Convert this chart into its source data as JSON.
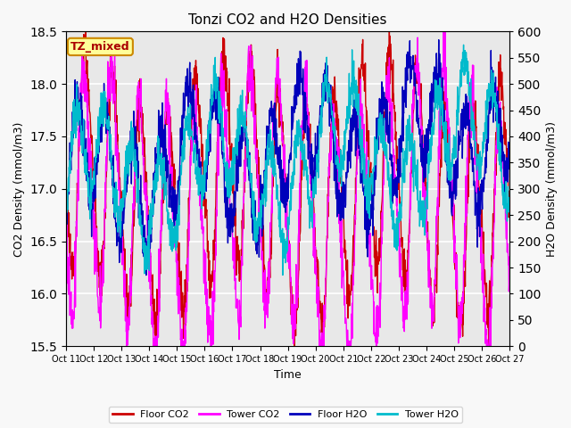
{
  "title": "Tonzi CO2 and H2O Densities",
  "xlabel": "Time",
  "ylabel_left": "CO2 Density (mmol/m3)",
  "ylabel_right": "H2O Density (mmol/m3)",
  "annotation_text": "TZ_mixed",
  "annotation_bg": "#ffff99",
  "annotation_border": "#cc8800",
  "xlim": [
    0,
    16
  ],
  "ylim_left": [
    15.5,
    18.5
  ],
  "ylim_right": [
    0,
    600
  ],
  "yticks_left": [
    15.5,
    16.0,
    16.5,
    17.0,
    17.5,
    18.0,
    18.5
  ],
  "yticks_right": [
    0,
    50,
    100,
    150,
    200,
    250,
    300,
    350,
    400,
    450,
    500,
    550,
    600
  ],
  "xtick_positions": [
    0,
    1,
    2,
    3,
    4,
    5,
    6,
    7,
    8,
    9,
    10,
    11,
    12,
    13,
    14,
    15,
    16
  ],
  "xtick_labels": [
    "Oct 11",
    "Oct 12",
    "Oct 13",
    "Oct 14",
    "Oct 15",
    "Oct 16",
    "Oct 17",
    "Oct 18",
    "Oct 19",
    "Oct 20",
    "Oct 21",
    "Oct 22",
    "Oct 23",
    "Oct 24",
    "Oct 25",
    "Oct 26",
    "Oct 27"
  ],
  "colors": {
    "floor_co2": "#cc0000",
    "tower_co2": "#ff00ff",
    "floor_h2o": "#0000bb",
    "tower_h2o": "#00bbcc"
  },
  "legend_labels": [
    "Floor CO2",
    "Tower CO2",
    "Floor H2O",
    "Tower H2O"
  ],
  "plot_bg": "#e8e8e8",
  "fig_bg": "#f8f8f8",
  "grid_color": "#ffffff",
  "linewidth": 1.0,
  "n_days": 16,
  "pts_per_day": 96
}
